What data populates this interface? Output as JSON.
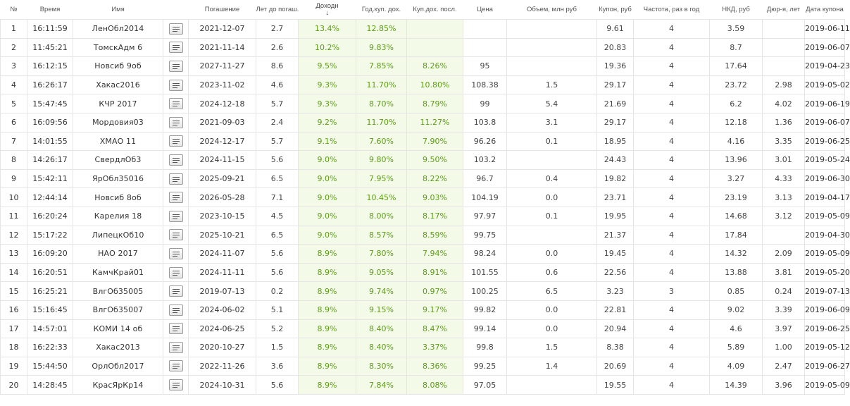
{
  "colors": {
    "green_text": "#5c9e12",
    "green_bg": "#f3fae8",
    "grid": "#e5e5e5"
  },
  "table": {
    "columns": [
      {
        "key": "num",
        "label": "№"
      },
      {
        "key": "time",
        "label": "Время"
      },
      {
        "key": "name",
        "label": "Имя"
      },
      {
        "key": "action",
        "label": ""
      },
      {
        "key": "maturity",
        "label": "Погашение"
      },
      {
        "key": "years",
        "label": "Лет до погаш."
      },
      {
        "key": "yield",
        "label": "Доходн",
        "sort_indicator": "↓"
      },
      {
        "key": "coupon_yield",
        "label": "Год.куп. дох."
      },
      {
        "key": "last_coupon_yield",
        "label": "Куп.дох. посл."
      },
      {
        "key": "price",
        "label": "Цена"
      },
      {
        "key": "volume",
        "label": "Объем, млн руб"
      },
      {
        "key": "coupon",
        "label": "Купон, руб"
      },
      {
        "key": "freq",
        "label": "Частота, раз в год"
      },
      {
        "key": "nkd",
        "label": "НКД, руб"
      },
      {
        "key": "duration",
        "label": "Дюр-я, лет"
      },
      {
        "key": "coupon_date",
        "label": "Дата купона"
      }
    ],
    "action_icon": "document-lines-icon",
    "rows": [
      {
        "num": "1",
        "time": "16:11:59",
        "name": "ЛенОбл2014",
        "maturity": "2021-12-07",
        "years": "2.7",
        "yield": "13.4%",
        "coupon_yield": "12.85%",
        "last_coupon_yield": "",
        "price": "",
        "volume": "",
        "coupon": "9.61",
        "freq": "4",
        "nkd": "3.59",
        "duration": "",
        "coupon_date": "2019-06-11"
      },
      {
        "num": "2",
        "time": "11:45:21",
        "name": "ТомскАдм 6",
        "maturity": "2021-11-14",
        "years": "2.6",
        "yield": "10.2%",
        "coupon_yield": "9.83%",
        "last_coupon_yield": "",
        "price": "",
        "volume": "",
        "coupon": "20.83",
        "freq": "4",
        "nkd": "8.7",
        "duration": "",
        "coupon_date": "2019-06-07"
      },
      {
        "num": "3",
        "time": "16:12:15",
        "name": "Новсиб 9об",
        "maturity": "2027-11-27",
        "years": "8.6",
        "yield": "9.5%",
        "coupon_yield": "7.85%",
        "last_coupon_yield": "8.26%",
        "price": "95",
        "volume": "",
        "coupon": "19.36",
        "freq": "4",
        "nkd": "17.64",
        "duration": "",
        "coupon_date": "2019-04-23"
      },
      {
        "num": "4",
        "time": "16:26:17",
        "name": "Хакас2016",
        "maturity": "2023-11-02",
        "years": "4.6",
        "yield": "9.3%",
        "coupon_yield": "11.70%",
        "last_coupon_yield": "10.80%",
        "price": "108.38",
        "volume": "1.5",
        "coupon": "29.17",
        "freq": "4",
        "nkd": "23.72",
        "duration": "2.98",
        "coupon_date": "2019-05-02"
      },
      {
        "num": "5",
        "time": "15:47:45",
        "name": "КЧР 2017",
        "maturity": "2024-12-18",
        "years": "5.7",
        "yield": "9.3%",
        "coupon_yield": "8.70%",
        "last_coupon_yield": "8.79%",
        "price": "99",
        "volume": "5.4",
        "coupon": "21.69",
        "freq": "4",
        "nkd": "6.2",
        "duration": "4.02",
        "coupon_date": "2019-06-19"
      },
      {
        "num": "6",
        "time": "16:09:56",
        "name": "Мордовия03",
        "maturity": "2021-09-03",
        "years": "2.4",
        "yield": "9.2%",
        "coupon_yield": "11.70%",
        "last_coupon_yield": "11.27%",
        "price": "103.8",
        "volume": "3.1",
        "coupon": "29.17",
        "freq": "4",
        "nkd": "12.18",
        "duration": "1.36",
        "coupon_date": "2019-06-07"
      },
      {
        "num": "7",
        "time": "14:01:55",
        "name": "ХМАО 11",
        "maturity": "2024-12-17",
        "years": "5.7",
        "yield": "9.1%",
        "coupon_yield": "7.60%",
        "last_coupon_yield": "7.90%",
        "price": "96.26",
        "volume": "0.1",
        "coupon": "18.95",
        "freq": "4",
        "nkd": "4.16",
        "duration": "3.35",
        "coupon_date": "2019-06-25"
      },
      {
        "num": "8",
        "time": "14:26:17",
        "name": "СвердлОб3",
        "maturity": "2024-11-15",
        "years": "5.6",
        "yield": "9.0%",
        "coupon_yield": "9.80%",
        "last_coupon_yield": "9.50%",
        "price": "103.2",
        "volume": "",
        "coupon": "24.43",
        "freq": "4",
        "nkd": "13.96",
        "duration": "3.01",
        "coupon_date": "2019-05-24"
      },
      {
        "num": "9",
        "time": "15:42:11",
        "name": "ЯрОбл35016",
        "maturity": "2025-09-21",
        "years": "6.5",
        "yield": "9.0%",
        "coupon_yield": "7.95%",
        "last_coupon_yield": "8.22%",
        "price": "96.7",
        "volume": "0.4",
        "coupon": "19.82",
        "freq": "4",
        "nkd": "3.27",
        "duration": "4.33",
        "coupon_date": "2019-06-30"
      },
      {
        "num": "10",
        "time": "12:44:14",
        "name": "Новсиб 8об",
        "maturity": "2026-05-28",
        "years": "7.1",
        "yield": "9.0%",
        "coupon_yield": "10.45%",
        "last_coupon_yield": "9.03%",
        "price": "104.19",
        "volume": "0.0",
        "coupon": "23.71",
        "freq": "4",
        "nkd": "23.19",
        "duration": "3.13",
        "coupon_date": "2019-04-17"
      },
      {
        "num": "11",
        "time": "16:20:24",
        "name": "Карелия 18",
        "maturity": "2023-10-15",
        "years": "4.5",
        "yield": "9.0%",
        "coupon_yield": "8.00%",
        "last_coupon_yield": "8.17%",
        "price": "97.97",
        "volume": "0.1",
        "coupon": "19.95",
        "freq": "4",
        "nkd": "14.68",
        "duration": "3.12",
        "coupon_date": "2019-05-09"
      },
      {
        "num": "12",
        "time": "15:17:22",
        "name": "ЛипецкОб10",
        "maturity": "2025-10-21",
        "years": "6.5",
        "yield": "9.0%",
        "coupon_yield": "8.57%",
        "last_coupon_yield": "8.59%",
        "price": "99.75",
        "volume": "",
        "coupon": "21.37",
        "freq": "4",
        "nkd": "17.84",
        "duration": "",
        "coupon_date": "2019-04-30"
      },
      {
        "num": "13",
        "time": "16:09:20",
        "name": "НАО 2017",
        "maturity": "2024-11-07",
        "years": "5.6",
        "yield": "8.9%",
        "coupon_yield": "7.80%",
        "last_coupon_yield": "7.94%",
        "price": "98.24",
        "volume": "0.0",
        "coupon": "19.45",
        "freq": "4",
        "nkd": "14.32",
        "duration": "2.09",
        "coupon_date": "2019-05-09"
      },
      {
        "num": "14",
        "time": "16:20:51",
        "name": "КамчКрай01",
        "maturity": "2024-11-11",
        "years": "5.6",
        "yield": "8.9%",
        "coupon_yield": "9.05%",
        "last_coupon_yield": "8.91%",
        "price": "101.55",
        "volume": "0.6",
        "coupon": "22.56",
        "freq": "4",
        "nkd": "13.88",
        "duration": "3.81",
        "coupon_date": "2019-05-20"
      },
      {
        "num": "15",
        "time": "16:25:21",
        "name": "ВлгОб35005",
        "maturity": "2019-07-13",
        "years": "0.2",
        "yield": "8.9%",
        "coupon_yield": "9.74%",
        "last_coupon_yield": "0.97%",
        "price": "100.25",
        "volume": "6.5",
        "coupon": "3.23",
        "freq": "3",
        "nkd": "0.85",
        "duration": "0.24",
        "coupon_date": "2019-07-13"
      },
      {
        "num": "16",
        "time": "15:16:45",
        "name": "ВлгОб35007",
        "maturity": "2024-06-02",
        "years": "5.1",
        "yield": "8.9%",
        "coupon_yield": "9.15%",
        "last_coupon_yield": "9.17%",
        "price": "99.82",
        "volume": "0.0",
        "coupon": "22.81",
        "freq": "4",
        "nkd": "9.02",
        "duration": "3.39",
        "coupon_date": "2019-06-09"
      },
      {
        "num": "17",
        "time": "14:57:01",
        "name": "КОМИ 14 об",
        "maturity": "2024-06-25",
        "years": "5.2",
        "yield": "8.9%",
        "coupon_yield": "8.40%",
        "last_coupon_yield": "8.47%",
        "price": "99.14",
        "volume": "0.0",
        "coupon": "20.94",
        "freq": "4",
        "nkd": "4.6",
        "duration": "3.97",
        "coupon_date": "2019-06-25"
      },
      {
        "num": "18",
        "time": "16:22:33",
        "name": "Хакас2013",
        "maturity": "2020-10-27",
        "years": "1.5",
        "yield": "8.9%",
        "coupon_yield": "8.40%",
        "last_coupon_yield": "3.37%",
        "price": "99.8",
        "volume": "1.5",
        "coupon": "8.38",
        "freq": "4",
        "nkd": "5.89",
        "duration": "1.00",
        "coupon_date": "2019-05-12"
      },
      {
        "num": "19",
        "time": "15:44:50",
        "name": "ОрлОбл2017",
        "maturity": "2022-11-26",
        "years": "3.6",
        "yield": "8.9%",
        "coupon_yield": "8.30%",
        "last_coupon_yield": "8.36%",
        "price": "99.25",
        "volume": "1.4",
        "coupon": "20.69",
        "freq": "4",
        "nkd": "4.09",
        "duration": "2.47",
        "coupon_date": "2019-06-27"
      },
      {
        "num": "20",
        "time": "14:28:45",
        "name": "КрасЯрКр14",
        "maturity": "2024-10-31",
        "years": "5.6",
        "yield": "8.9%",
        "coupon_yield": "7.84%",
        "last_coupon_yield": "8.08%",
        "price": "97.05",
        "volume": "",
        "coupon": "19.55",
        "freq": "4",
        "nkd": "14.39",
        "duration": "3.96",
        "coupon_date": "2019-05-09"
      }
    ]
  }
}
